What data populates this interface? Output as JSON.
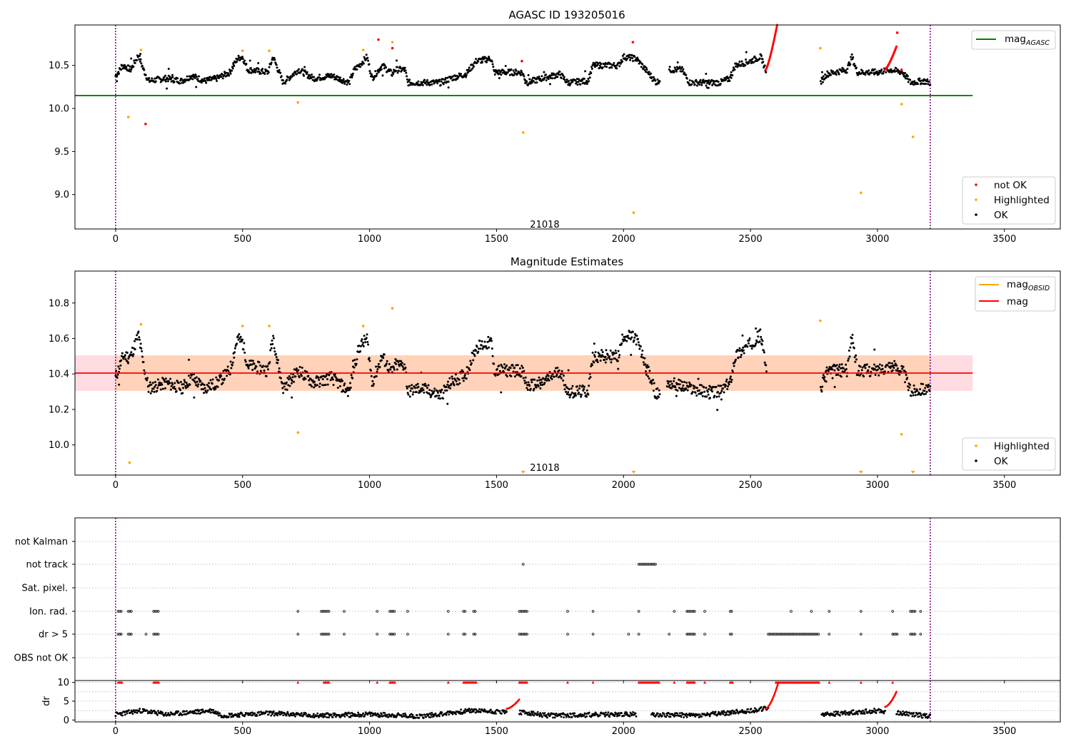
{
  "figure": {
    "legend1": {
      "line_label": "mag",
      "line_label_sub": "AGASC",
      "line_color": "#008000",
      "point_labels": [
        "not OK",
        "Highlighted",
        "OK"
      ],
      "point_colors": [
        "#ff0000",
        "#ffa500",
        "#000000"
      ]
    },
    "legend2": {
      "line_labels": [
        "mag",
        "mag"
      ],
      "line_label_sub": "OBSID",
      "line_colors": [
        "#ffa500",
        "#ff0000"
      ],
      "point_labels": [
        "Highlighted",
        "OK"
      ],
      "point_colors": [
        "#ffa500",
        "#000000"
      ]
    },
    "annotation": "21018",
    "boundary_color": "#800080"
  },
  "chart_data": [
    {
      "type": "scatter",
      "title": "AGASC ID 193205016",
      "xlim": [
        -160,
        3720
      ],
      "ylim": [
        8.6,
        10.97
      ],
      "xticks": [
        0,
        500,
        1000,
        1500,
        2000,
        2500,
        3000,
        3500
      ],
      "yticks": [
        9.0,
        9.5,
        10.0,
        10.5
      ],
      "yticklabels": [
        "9.0",
        "9.5",
        "10.0",
        "10.5"
      ],
      "annotation": {
        "x": 1600,
        "y": 8.65,
        "text": "21018"
      },
      "vlines": [
        0,
        3208
      ],
      "hline": {
        "y": 10.15,
        "xmin": -160,
        "xmax": 3375,
        "name": "mag_AGASC"
      },
      "ok_segments": [
        [
          0,
          10.38
        ],
        [
          30,
          10.5
        ],
        [
          60,
          10.45
        ],
        [
          90,
          10.62
        ],
        [
          110,
          10.45
        ],
        [
          130,
          10.32
        ],
        [
          200,
          10.35
        ],
        [
          260,
          10.32
        ],
        [
          300,
          10.38
        ],
        [
          350,
          10.32
        ],
        [
          400,
          10.35
        ],
        [
          450,
          10.42
        ],
        [
          480,
          10.58
        ],
        [
          500,
          10.6
        ],
        [
          520,
          10.45
        ],
        [
          600,
          10.42
        ],
        [
          620,
          10.6
        ],
        [
          640,
          10.45
        ],
        [
          660,
          10.3
        ],
        [
          720,
          10.45
        ],
        [
          780,
          10.35
        ],
        [
          850,
          10.38
        ],
        [
          920,
          10.3
        ],
        [
          940,
          10.45
        ],
        [
          960,
          10.5
        ],
        [
          990,
          10.6
        ],
        [
          1010,
          10.35
        ],
        [
          1050,
          10.5
        ],
        [
          1090,
          10.4
        ],
        [
          1100,
          10.45
        ],
        [
          1140,
          10.45
        ],
        [
          1150,
          10.3
        ],
        [
          1200,
          10.3
        ],
        [
          1280,
          10.3
        ],
        [
          1320,
          10.35
        ],
        [
          1380,
          10.4
        ],
        [
          1420,
          10.55
        ],
        [
          1480,
          10.58
        ],
        [
          1490,
          10.42
        ],
        [
          1600,
          10.42
        ],
        [
          1620,
          10.3
        ],
        [
          1680,
          10.35
        ],
        [
          1750,
          10.4
        ],
        [
          1780,
          10.3
        ],
        [
          1860,
          10.32
        ],
        [
          1880,
          10.5
        ],
        [
          1980,
          10.5
        ],
        [
          2000,
          10.6
        ],
        [
          2050,
          10.58
        ],
        [
          2130,
          10.3
        ],
        [
          2180,
          10.45
        ],
        [
          2230,
          10.45
        ],
        [
          2260,
          10.3
        ],
        [
          2320,
          10.3
        ],
        [
          2380,
          10.3
        ],
        [
          2420,
          10.35
        ],
        [
          2440,
          10.5
        ],
        [
          2500,
          10.55
        ],
        [
          2540,
          10.6
        ],
        [
          2560,
          10.45
        ],
        [
          2775,
          10.3
        ],
        [
          2800,
          10.4
        ],
        [
          2880,
          10.45
        ],
        [
          2900,
          10.6
        ],
        [
          2920,
          10.42
        ],
        [
          3000,
          10.42
        ],
        [
          3050,
          10.45
        ],
        [
          3100,
          10.42
        ],
        [
          3130,
          10.3
        ],
        [
          3180,
          10.32
        ],
        [
          3208,
          10.3
        ]
      ],
      "ok_gaps": [
        [
          2145,
          2180
        ],
        [
          2565,
          2775
        ]
      ],
      "not_ok_points": [
        [
          118,
          9.82
        ],
        [
          1035,
          10.8
        ],
        [
          1090,
          10.7
        ],
        [
          1600,
          10.55
        ],
        [
          2037,
          10.77
        ],
        [
          3078,
          10.88
        ],
        [
          3095,
          10.45
        ]
      ],
      "not_ok_ramps": [
        [
          2560,
          2605,
          10.45,
          10.97
        ],
        [
          3030,
          3075,
          10.45,
          10.72
        ]
      ],
      "highlighted_points": [
        [
          50,
          9.9
        ],
        [
          100,
          10.68
        ],
        [
          500,
          10.67
        ],
        [
          605,
          10.67
        ],
        [
          718,
          10.07
        ],
        [
          975,
          10.68
        ],
        [
          1090,
          10.77
        ],
        [
          1605,
          9.72
        ],
        [
          2040,
          8.79
        ],
        [
          2775,
          10.7
        ],
        [
          2935,
          9.02
        ],
        [
          3095,
          10.05
        ],
        [
          3140,
          9.67
        ]
      ]
    },
    {
      "type": "scatter",
      "title": "Magnitude Estimates",
      "xlim": [
        -160,
        3720
      ],
      "ylim": [
        9.83,
        10.98
      ],
      "xticks": [
        0,
        500,
        1000,
        1500,
        2000,
        2500,
        3000,
        3500
      ],
      "yticks": [
        10.0,
        10.2,
        10.4,
        10.6,
        10.8
      ],
      "yticklabels": [
        "10.0",
        "10.2",
        "10.4",
        "10.6",
        "10.8"
      ],
      "annotation": {
        "x": 1600,
        "y": 9.87,
        "text": "21018"
      },
      "vlines": [
        0,
        3208
      ],
      "band": {
        "ymin": 10.305,
        "ymax": 10.505,
        "xmin": -160,
        "xmax": 3375
      },
      "mag_line": {
        "y": 10.405,
        "xmin": -160,
        "xmax": 3375
      },
      "ok_segments": [
        [
          0,
          10.38
        ],
        [
          30,
          10.5
        ],
        [
          60,
          10.5
        ],
        [
          90,
          10.62
        ],
        [
          110,
          10.45
        ],
        [
          130,
          10.32
        ],
        [
          200,
          10.35
        ],
        [
          260,
          10.32
        ],
        [
          300,
          10.38
        ],
        [
          350,
          10.32
        ],
        [
          400,
          10.35
        ],
        [
          450,
          10.42
        ],
        [
          480,
          10.6
        ],
        [
          500,
          10.58
        ],
        [
          520,
          10.45
        ],
        [
          600,
          10.42
        ],
        [
          620,
          10.62
        ],
        [
          640,
          10.45
        ],
        [
          660,
          10.32
        ],
        [
          720,
          10.42
        ],
        [
          780,
          10.35
        ],
        [
          850,
          10.38
        ],
        [
          920,
          10.3
        ],
        [
          940,
          10.45
        ],
        [
          960,
          10.55
        ],
        [
          990,
          10.6
        ],
        [
          1010,
          10.35
        ],
        [
          1050,
          10.5
        ],
        [
          1090,
          10.4
        ],
        [
          1100,
          10.45
        ],
        [
          1140,
          10.45
        ],
        [
          1150,
          10.3
        ],
        [
          1200,
          10.32
        ],
        [
          1280,
          10.28
        ],
        [
          1320,
          10.35
        ],
        [
          1380,
          10.4
        ],
        [
          1420,
          10.55
        ],
        [
          1480,
          10.58
        ],
        [
          1490,
          10.42
        ],
        [
          1600,
          10.42
        ],
        [
          1620,
          10.33
        ],
        [
          1680,
          10.35
        ],
        [
          1750,
          10.42
        ],
        [
          1780,
          10.3
        ],
        [
          1860,
          10.3
        ],
        [
          1880,
          10.5
        ],
        [
          1980,
          10.5
        ],
        [
          2000,
          10.62
        ],
        [
          2050,
          10.6
        ],
        [
          2130,
          10.28
        ],
        [
          2180,
          10.35
        ],
        [
          2230,
          10.33
        ],
        [
          2260,
          10.32
        ],
        [
          2320,
          10.3
        ],
        [
          2380,
          10.3
        ],
        [
          2420,
          10.35
        ],
        [
          2440,
          10.5
        ],
        [
          2500,
          10.57
        ],
        [
          2540,
          10.62
        ],
        [
          2560,
          10.45
        ],
        [
          2775,
          10.3
        ],
        [
          2800,
          10.42
        ],
        [
          2880,
          10.42
        ],
        [
          2900,
          10.62
        ],
        [
          2920,
          10.42
        ],
        [
          3000,
          10.42
        ],
        [
          3050,
          10.45
        ],
        [
          3100,
          10.42
        ],
        [
          3130,
          10.3
        ],
        [
          3180,
          10.32
        ],
        [
          3208,
          10.3
        ]
      ],
      "ok_gaps": [
        [
          2145,
          2170
        ],
        [
          2565,
          2775
        ]
      ],
      "highlighted_points": [
        [
          55,
          9.9
        ],
        [
          100,
          10.68
        ],
        [
          500,
          10.67
        ],
        [
          605,
          10.67
        ],
        [
          718,
          10.07
        ],
        [
          975,
          10.67
        ],
        [
          1090,
          10.77
        ],
        [
          2775,
          10.7
        ],
        [
          3095,
          10.06
        ]
      ],
      "offscale_markers": [
        1605,
        2040,
        2935,
        3140
      ]
    },
    {
      "type": "scatter",
      "title": "",
      "xlim": [
        -160,
        3720
      ],
      "xticks": [
        0,
        500,
        1000,
        1500,
        2000,
        2500,
        3000,
        3500
      ],
      "flag_rows": [
        "not Kalman",
        "not track",
        "Sat. pixel.",
        "Ion. rad.",
        "dr > 5",
        "OBS not OK"
      ],
      "vlines": [
        0,
        3208
      ],
      "flag_points": {
        "not track": [
          [
            1605,
            1605
          ],
          [
            2060,
            2130
          ]
        ],
        "Ion. rad.": [
          [
            10,
            25
          ],
          [
            50,
            65
          ],
          [
            150,
            170
          ],
          [
            718,
            718
          ],
          [
            810,
            840
          ],
          [
            900,
            900
          ],
          [
            1030,
            1030
          ],
          [
            1080,
            1100
          ],
          [
            1150,
            1150
          ],
          [
            1310,
            1310
          ],
          [
            1370,
            1380
          ],
          [
            1410,
            1420
          ],
          [
            1590,
            1620
          ],
          [
            1780,
            1780
          ],
          [
            1880,
            1880
          ],
          [
            2060,
            2060
          ],
          [
            2200,
            2200
          ],
          [
            2250,
            2280
          ],
          [
            2320,
            2320
          ],
          [
            2420,
            2430
          ],
          [
            2660,
            2660
          ],
          [
            2740,
            2740
          ],
          [
            2810,
            2810
          ],
          [
            2935,
            2935
          ],
          [
            3060,
            3060
          ],
          [
            3130,
            3150
          ],
          [
            3170,
            3170
          ]
        ],
        "dr > 5": [
          [
            10,
            25
          ],
          [
            50,
            65
          ],
          [
            120,
            120
          ],
          [
            150,
            170
          ],
          [
            718,
            718
          ],
          [
            810,
            840
          ],
          [
            900,
            900
          ],
          [
            1030,
            1030
          ],
          [
            1080,
            1100
          ],
          [
            1150,
            1150
          ],
          [
            1310,
            1310
          ],
          [
            1370,
            1380
          ],
          [
            1410,
            1420
          ],
          [
            1590,
            1620
          ],
          [
            1780,
            1780
          ],
          [
            1880,
            1880
          ],
          [
            2020,
            2020
          ],
          [
            2060,
            2060
          ],
          [
            2180,
            2180
          ],
          [
            2250,
            2280
          ],
          [
            2320,
            2320
          ],
          [
            2420,
            2430
          ],
          [
            2570,
            2770
          ],
          [
            2810,
            2810
          ],
          [
            2935,
            2935
          ],
          [
            3060,
            3080
          ],
          [
            3130,
            3150
          ],
          [
            3170,
            3170
          ]
        ]
      }
    },
    {
      "type": "scatter",
      "title": "",
      "ylabel": "dr",
      "xlim": [
        -160,
        3720
      ],
      "ylim": [
        -0.5,
        10.5
      ],
      "xticks": [
        0,
        500,
        1000,
        1500,
        2000,
        2500,
        3000,
        3500
      ],
      "xticklabels": [
        "0",
        "500",
        "1000",
        "1500",
        "2000",
        "2500",
        "3000",
        "3500"
      ],
      "yticks": [
        0,
        5,
        10
      ],
      "yticklabels": [
        "0",
        "5",
        "10"
      ],
      "vlines": [
        0,
        3208
      ],
      "ok_segments": [
        [
          0,
          1.5
        ],
        [
          100,
          2.5
        ],
        [
          200,
          1.5
        ],
        [
          380,
          2.5
        ],
        [
          420,
          1.2
        ],
        [
          600,
          1.8
        ],
        [
          800,
          1.2
        ],
        [
          1000,
          1.5
        ],
        [
          1200,
          1.0
        ],
        [
          1400,
          2.5
        ],
        [
          1600,
          2.0
        ],
        [
          1700,
          1.2
        ],
        [
          2000,
          1.5
        ],
        [
          2100,
          1.5
        ],
        [
          2300,
          1.2
        ],
        [
          2500,
          2.5
        ],
        [
          2560,
          3.0
        ],
        [
          2800,
          1.5
        ],
        [
          3000,
          2.5
        ],
        [
          3208,
          1.0
        ]
      ],
      "ok_gaps": [
        [
          1540,
          1590
        ],
        [
          2050,
          2110
        ],
        [
          2570,
          2780
        ],
        [
          3030,
          3075
        ]
      ],
      "not_ok_curves": [
        [
          1540,
          1590,
          3.0,
          5.5
        ],
        [
          2560,
          2610,
          3.0,
          10.0
        ],
        [
          3030,
          3075,
          3.5,
          7.5
        ]
      ],
      "not_ok_saturated": [
        [
          10,
          25
        ],
        [
          150,
          170
        ],
        [
          718,
          718
        ],
        [
          820,
          840
        ],
        [
          1030,
          1030
        ],
        [
          1080,
          1100
        ],
        [
          1310,
          1310
        ],
        [
          1370,
          1420
        ],
        [
          1590,
          1620
        ],
        [
          1780,
          1780
        ],
        [
          1880,
          1880
        ],
        [
          2060,
          2140
        ],
        [
          2200,
          2200
        ],
        [
          2250,
          2280
        ],
        [
          2320,
          2320
        ],
        [
          2420,
          2430
        ],
        [
          2600,
          2770
        ],
        [
          2810,
          2810
        ],
        [
          2935,
          2935
        ],
        [
          3060,
          3060
        ]
      ]
    }
  ]
}
